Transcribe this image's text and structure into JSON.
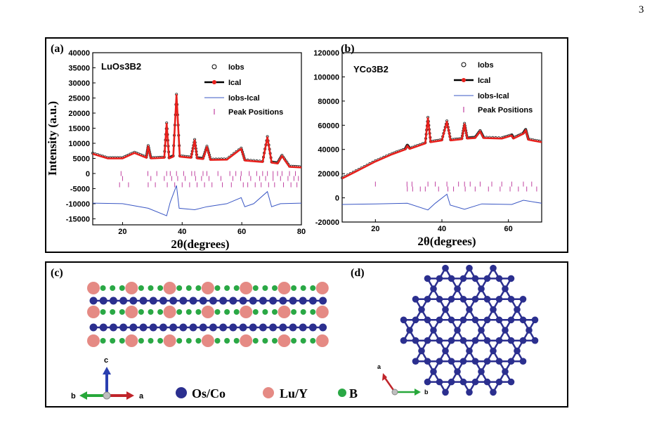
{
  "page_number": "3",
  "panels": {
    "a": {
      "label": "(a)",
      "compound": "LuOs3B2",
      "xlabel": "2θ(degrees)",
      "ylabel": "Intensity (a.u.)",
      "legend": [
        "Iobs",
        "Ical",
        "Iobs-Ical",
        "Peak Positions"
      ],
      "yticks": [
        "40000",
        "35000",
        "30000",
        "25000",
        "20000",
        "15000",
        "10000",
        "5000",
        "0",
        "-5000",
        "-10000",
        "-15000"
      ],
      "xticks": [
        "20",
        "40",
        "60",
        "80"
      ]
    },
    "b": {
      "label": "(b)",
      "compound": "YCo3B2",
      "xlabel": "2θ(degrees)",
      "legend": [
        "Iobs",
        "Ical",
        "Iobs-Ical",
        "Peak Positions"
      ],
      "yticks": [
        "120000",
        "100000",
        "80000",
        "60000",
        "40000",
        "20000",
        "0",
        "-20000"
      ],
      "xticks": [
        "20",
        "40",
        "60"
      ]
    },
    "c": {
      "label": "(c)",
      "axis_c": "c",
      "axis_b": "b",
      "axis_a": "a",
      "legend": [
        "Os/Co",
        "Lu/Y",
        "B"
      ]
    },
    "d": {
      "label": "(d)",
      "axis_a": "a",
      "axis_b": "b"
    }
  },
  "colors": {
    "atom_os_co": "#2b2f8f",
    "atom_lu_y": "#e58a84",
    "atom_b": "#2aa845",
    "fit": "#e8201c",
    "diff": "#3a57c4",
    "ticks": "#c040a0"
  },
  "chart_data": [
    {
      "type": "line",
      "title": "LuOs3B2",
      "xlabel": "2θ(degrees)",
      "ylabel": "Intensity (a.u.)",
      "xlim": [
        10,
        80
      ],
      "ylim": [
        -17000,
        40000
      ],
      "series": [
        {
          "name": "Ical",
          "x": [
            10,
            15,
            20,
            24,
            28,
            28.6,
            29.5,
            34,
            34.8,
            35.6,
            37,
            38.1,
            39.2,
            43,
            44.2,
            45,
            47,
            48.3,
            49.5,
            55,
            59.8,
            61,
            67,
            68.6,
            70,
            72,
            73.5,
            76,
            80
          ],
          "y": [
            6500,
            5000,
            5000,
            6800,
            5200,
            9000,
            5000,
            5200,
            16500,
            5000,
            5600,
            26000,
            5600,
            5200,
            11000,
            5000,
            4800,
            8800,
            4500,
            4600,
            8200,
            4300,
            3800,
            12000,
            3600,
            3300,
            5800,
            2200,
            2000
          ]
        },
        {
          "name": "Iobs-Ical",
          "x": [
            10,
            20,
            28.6,
            34.8,
            36,
            38.1,
            39,
            44.2,
            48.3,
            55,
            59.8,
            61,
            64,
            68.6,
            70,
            73,
            80
          ],
          "y": [
            -9800,
            -10000,
            -11500,
            -14000,
            -9500,
            -4000,
            -11500,
            -12000,
            -11000,
            -10000,
            -8000,
            -11000,
            -10000,
            -6000,
            -11000,
            -10000,
            -9800
          ]
        }
      ],
      "peak_positions_rows": [
        [
          19.5,
          28.5,
          31.5,
          34.8,
          36,
          38.1,
          40.5,
          43.2,
          44.2,
          47,
          48.3,
          52,
          56,
          58,
          59.8,
          62.5,
          65,
          67,
          68.6,
          70.5,
          72,
          73.5,
          76,
          78
        ],
        [
          20,
          29.5,
          34,
          36.5,
          38.5,
          41,
          44.5,
          46.5,
          49,
          53,
          57,
          59.6,
          63,
          66,
          68,
          70.5,
          73,
          75.5,
          77.5,
          79
        ],
        [
          19,
          22,
          28.6,
          31,
          35,
          37.5,
          40,
          42.5,
          45,
          47.5,
          50,
          53.5,
          56.5,
          60.5,
          62,
          64.5,
          66.5,
          69,
          71,
          74,
          76.5,
          78.5
        ]
      ]
    },
    {
      "type": "line",
      "title": "YCo3B2",
      "xlabel": "2θ(degrees)",
      "xlim": [
        10,
        70
      ],
      "ylim": [
        -20000,
        120000
      ],
      "series": [
        {
          "name": "Ical",
          "x": [
            10,
            15,
            20,
            25,
            29,
            29.6,
            30.3,
            35,
            35.8,
            36.6,
            40,
            41.5,
            42.6,
            46,
            46.8,
            47.6,
            50,
            51.5,
            52.5,
            58,
            61,
            61.5,
            64.5,
            65.2,
            66,
            70
          ],
          "y": [
            16000,
            23000,
            30000,
            36000,
            40000,
            43000,
            40500,
            45000,
            66000,
            46000,
            47500,
            63000,
            47500,
            48500,
            61000,
            49000,
            49500,
            55000,
            49500,
            49000,
            51500,
            49000,
            53000,
            56000,
            48000,
            46000
          ]
        },
        {
          "name": "Iobs-Ical",
          "x": [
            10,
            20,
            29.6,
            35.8,
            38,
            41.5,
            42.5,
            46.8,
            52,
            61,
            64.5,
            70
          ],
          "y": [
            -5500,
            -5000,
            -4500,
            -10000,
            -4500,
            3000,
            -6000,
            -9500,
            -5000,
            -5500,
            -2000,
            -4500
          ]
        }
      ],
      "peak_positions_rows": [
        [
          20,
          29.5,
          31,
          35.8,
          38,
          41.5,
          45,
          46.8,
          48.5,
          51.5,
          55,
          58,
          61,
          64.5,
          67
        ],
        [
          29.6,
          31.2,
          33.5,
          35,
          39,
          41.8,
          43.5,
          47,
          50,
          54,
          57.5,
          60.5,
          63,
          65.5,
          68.5
        ]
      ]
    }
  ]
}
